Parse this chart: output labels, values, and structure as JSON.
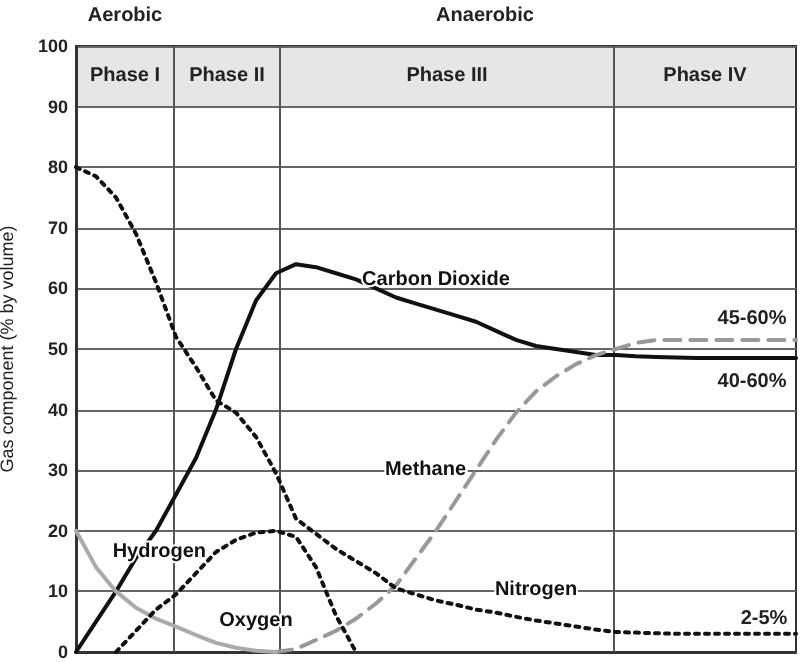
{
  "chart_data": {
    "type": "line",
    "ylabel": "Gas component (% by volume)",
    "ylim": [
      0,
      100
    ],
    "yticks": [
      0,
      10,
      20,
      30,
      40,
      50,
      60,
      70,
      80,
      90,
      100
    ],
    "grid": true,
    "legend": false,
    "categories": [
      null,
      null,
      null,
      null,
      null,
      null,
      null,
      null,
      null,
      null,
      null,
      null,
      null,
      null,
      null,
      null,
      null,
      null,
      null,
      null,
      null,
      null,
      null,
      null,
      null,
      null,
      null,
      null,
      null,
      null,
      null,
      null,
      null,
      null,
      null,
      null,
      null
    ],
    "series": [
      {
        "name": "Carbon Dioxide",
        "color": "#111111",
        "line_style": "solid",
        "values": [
          0,
          5,
          10,
          15.5,
          20,
          26,
          32,
          40,
          50,
          58,
          62.5,
          64,
          63.5,
          62.5,
          61.5,
          60,
          58.5,
          57.5,
          56.5,
          55.5,
          54.5,
          53,
          51.5,
          50.5,
          50,
          49.5,
          49,
          49,
          48.8,
          48.7,
          48.6,
          48.5,
          48.5,
          48.5,
          48.5,
          48.5,
          48.5
        ]
      },
      {
        "name": "Methane",
        "color": "#999999",
        "line_style": "dashed",
        "values": [
          null,
          null,
          null,
          null,
          null,
          null,
          null,
          null,
          null,
          null,
          0,
          0.5,
          2,
          3.5,
          5.5,
          8,
          11,
          15.5,
          20,
          25,
          30,
          35,
          39.5,
          43,
          45.5,
          47.5,
          49,
          50,
          51,
          51.5,
          51.5,
          51.5,
          51.5,
          51.5,
          51.5,
          51.5,
          51.5
        ]
      },
      {
        "name": "Nitrogen",
        "color": "#111111",
        "line_style": "dotted",
        "values": [
          80,
          78.5,
          75,
          69,
          61,
          52,
          47,
          41.5,
          39.5,
          35.5,
          29.5,
          22,
          19.5,
          17,
          15,
          13,
          10.5,
          9.5,
          8.5,
          7.8,
          7,
          6.5,
          5.8,
          5.2,
          4.7,
          4.2,
          3.7,
          3.3,
          3.2,
          3.1,
          3,
          3,
          3,
          3,
          3,
          3,
          3
        ]
      },
      {
        "name": "Oxygen",
        "color": "#aaaaaa",
        "line_style": "solid",
        "values": [
          20,
          14,
          10,
          7.3,
          5.5,
          4.2,
          2.8,
          1.5,
          0.7,
          0.2,
          0,
          null,
          null,
          null,
          null,
          null,
          null,
          null,
          null,
          null,
          null,
          null,
          null,
          null,
          null,
          null,
          null,
          null,
          null,
          null,
          null,
          null,
          null,
          null,
          null,
          null,
          null
        ]
      },
      {
        "name": "Hydrogen",
        "color": "#111111",
        "line_style": "dotted",
        "values": [
          null,
          null,
          0,
          3.5,
          7,
          9.5,
          13,
          16.5,
          18.5,
          19.7,
          20,
          19,
          14,
          6,
          0,
          null,
          null,
          null,
          null,
          null,
          null,
          null,
          null,
          null,
          null,
          null,
          null,
          null,
          null,
          null,
          null,
          null,
          null,
          null,
          null,
          null,
          null
        ]
      }
    ],
    "annotations": [
      "Aerobic",
      "Anaerobic",
      "Phase I",
      "Phase II",
      "Phase III",
      "Phase IV",
      "45-60%",
      "40-60%",
      "2-5%"
    ]
  }
}
